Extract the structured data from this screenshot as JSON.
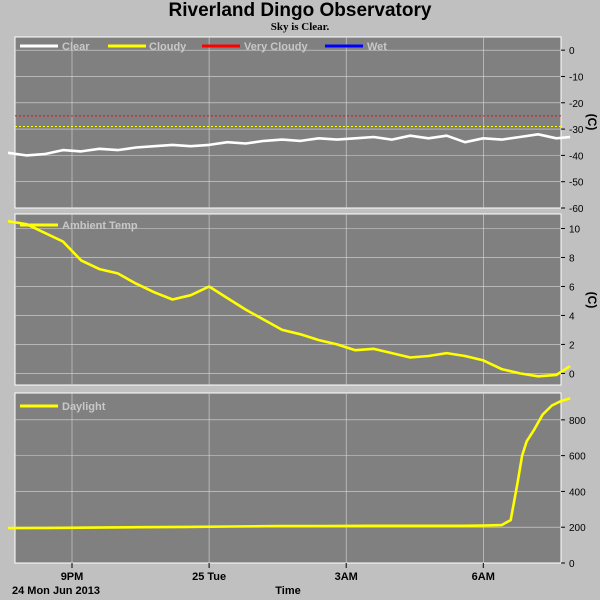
{
  "title": "Riverland Dingo Observatory",
  "subtitle": "Sky is Clear.",
  "colors": {
    "background": "#c0c0c0",
    "plot_bg": "#808080",
    "grid": "#d8d8d8",
    "clear": "#ffffff",
    "cloudy": "#ffff00",
    "very_cloudy": "#ff0000",
    "wet": "#0000ff"
  },
  "x_axis": {
    "label": "Time",
    "date_label": "24 Mon Jun 2013",
    "range_hours": [
      19.5,
      27.5
    ],
    "ticks": [
      {
        "hour": 21,
        "label": "9PM"
      },
      {
        "hour": 24,
        "label": "25 Tue"
      },
      {
        "hour": 27,
        "label": "3AM"
      },
      {
        "hour": 30,
        "label": "6AM"
      }
    ]
  },
  "chart_data": [
    {
      "type": "line",
      "name": "sky",
      "legend": [
        "Clear",
        "Cloudy",
        "Very Cloudy",
        "Wet"
      ],
      "ylabel": "(C)",
      "ylim": [
        -60,
        5
      ],
      "yticks": [
        0,
        -10,
        -20,
        -30,
        -40,
        -50,
        -60
      ],
      "grid": true,
      "thresholds": [
        {
          "name": "Very Cloudy",
          "value": -25
        },
        {
          "name": "Cloudy",
          "value": -29
        }
      ],
      "series": [
        {
          "name": "Clear",
          "x": [
            19.6,
            20.0,
            20.4,
            20.8,
            21.2,
            21.6,
            22.0,
            22.4,
            22.8,
            23.2,
            23.6,
            24.0,
            24.4,
            24.8,
            25.2,
            25.6,
            26.0,
            26.4,
            26.8,
            27.2,
            27.6,
            28.0,
            28.4,
            28.8,
            29.2,
            29.6,
            30.0,
            30.4,
            30.8,
            31.2,
            31.6,
            31.9
          ],
          "values": [
            -39,
            -40,
            -39.5,
            -38,
            -38.5,
            -37.5,
            -38,
            -37,
            -36.5,
            -36,
            -36.5,
            -36,
            -35,
            -35.5,
            -34.5,
            -34,
            -34.5,
            -33.5,
            -34,
            -33.5,
            -33,
            -34,
            -32.5,
            -33.5,
            -32.5,
            -35,
            -33.5,
            -34,
            -33,
            -32,
            -33.5,
            -33
          ]
        }
      ]
    },
    {
      "type": "line",
      "name": "ambient",
      "legend": [
        "Ambient Temp"
      ],
      "ylabel": "(C)",
      "ylim": [
        -0.8,
        11
      ],
      "yticks": [
        10,
        8,
        6,
        4,
        2,
        0
      ],
      "grid": true,
      "series": [
        {
          "name": "Ambient Temp",
          "x": [
            19.6,
            20.0,
            20.4,
            20.8,
            21.2,
            21.6,
            22.0,
            22.4,
            22.8,
            23.2,
            23.6,
            24.0,
            24.4,
            24.8,
            25.2,
            25.6,
            26.0,
            26.4,
            26.8,
            27.2,
            27.6,
            28.0,
            28.4,
            28.8,
            29.2,
            29.6,
            30.0,
            30.4,
            30.8,
            31.2,
            31.6,
            31.9
          ],
          "values": [
            10.5,
            10.3,
            9.7,
            9.1,
            7.8,
            7.2,
            6.9,
            6.2,
            5.6,
            5.1,
            5.4,
            6.0,
            5.2,
            4.4,
            3.7,
            3.0,
            2.7,
            2.3,
            2.0,
            1.6,
            1.7,
            1.4,
            1.1,
            1.2,
            1.4,
            1.2,
            0.9,
            0.3,
            0.0,
            -0.2,
            -0.1,
            0.5
          ]
        }
      ]
    },
    {
      "type": "line",
      "name": "daylight",
      "legend": [
        "Daylight"
      ],
      "ylabel": "",
      "ylim": [
        0,
        950
      ],
      "yticks": [
        800,
        600,
        400,
        200,
        0
      ],
      "grid": true,
      "series": [
        {
          "name": "Daylight",
          "x": [
            19.6,
            20.5,
            21.5,
            22.5,
            23.5,
            24.5,
            25.5,
            26.5,
            27.5,
            28.5,
            29.5,
            30.0,
            30.4,
            30.6,
            30.75,
            30.85,
            30.95,
            31.1,
            31.3,
            31.5,
            31.7,
            31.9
          ],
          "values": [
            195,
            196,
            198,
            200,
            202,
            204,
            206,
            207,
            208,
            208,
            208,
            209,
            212,
            240,
            450,
            600,
            680,
            740,
            830,
            880,
            905,
            920
          ]
        }
      ]
    }
  ]
}
